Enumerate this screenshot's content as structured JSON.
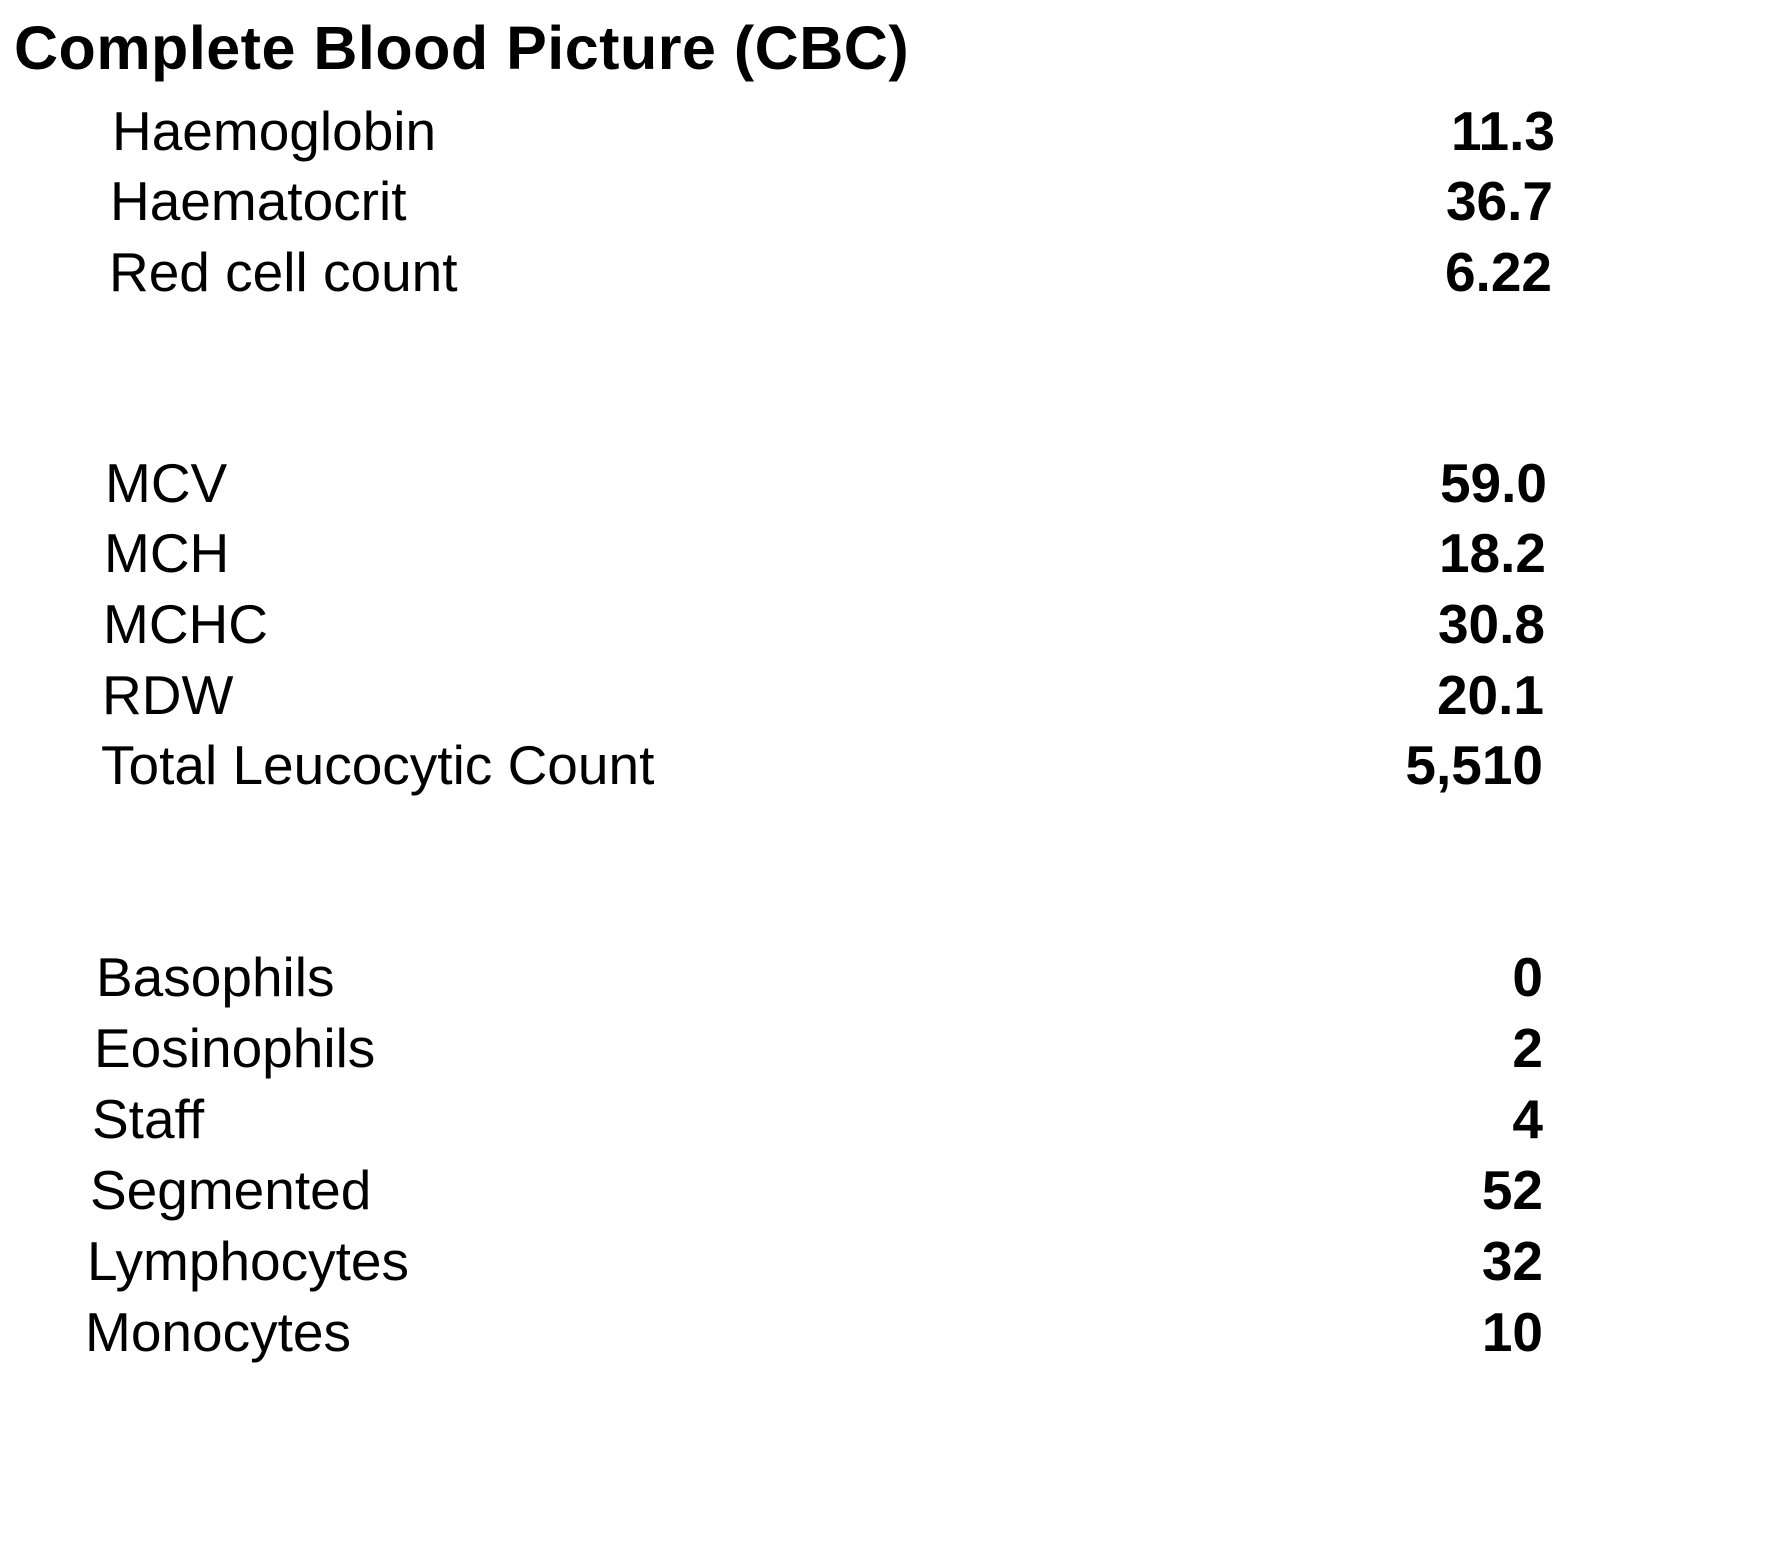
{
  "report": {
    "title": "Complete Blood Picture (CBC)",
    "rows": [
      {
        "label": "Haemoglobin",
        "value": "11.3"
      },
      {
        "label": "Haematocrit",
        "value": "36.7"
      },
      {
        "label": "Red cell count",
        "value": "6.22"
      },
      {
        "label": "MCV",
        "value": "59.0"
      },
      {
        "label": "MCH",
        "value": "18.2"
      },
      {
        "label": "MCHC",
        "value": "30.8"
      },
      {
        "label": "RDW",
        "value": "20.1"
      },
      {
        "label": "Total Leucocytic Count",
        "value": "5,510"
      },
      {
        "label": "Basophils",
        "value": "0"
      },
      {
        "label": "Eosinophils",
        "value": "2"
      },
      {
        "label": "Staff",
        "value": "4"
      },
      {
        "label": "Segmented",
        "value": "52"
      },
      {
        "label": "Lymphocytes",
        "value": "32"
      },
      {
        "label": "Monocytes",
        "value": "10"
      }
    ]
  }
}
